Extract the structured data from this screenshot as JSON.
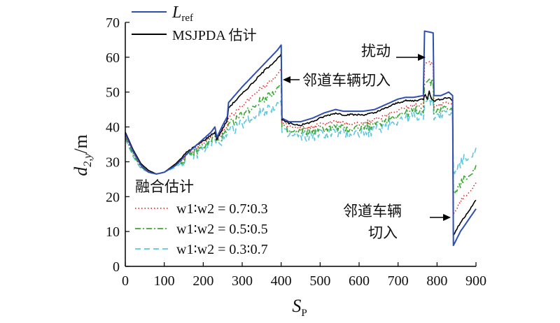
{
  "chart_data": {
    "type": "line",
    "xlabel": "S",
    "xlabel_sub": "P",
    "ylabel": "d",
    "ylabel_sub": "2,y",
    "ylabel_unit": "/m",
    "xlim": [
      0,
      900
    ],
    "ylim": [
      0,
      70
    ],
    "xticks": [
      0,
      100,
      200,
      300,
      400,
      500,
      600,
      700,
      800,
      900
    ],
    "yticks": [
      0,
      10,
      20,
      30,
      40,
      50,
      60,
      70
    ],
    "grid": false,
    "legend_top": {
      "placement": "top-left",
      "entries": [
        {
          "series": "ref",
          "label_main": "L",
          "label_sub": "ref"
        },
        {
          "series": "msjpda",
          "label": "MSJPDA 估计"
        }
      ]
    },
    "legend_bottom": {
      "placement": "bottom-left",
      "title": "融合估计",
      "entries": [
        {
          "series": "fuse1",
          "label": "w1∶w2 = 0.7∶0.3"
        },
        {
          "series": "fuse2",
          "label": "w1∶w2 = 0.5∶0.5"
        },
        {
          "series": "fuse3",
          "label": "w1∶w2 = 0.3∶0.7"
        }
      ]
    },
    "annotations": [
      {
        "text": "扰动",
        "x": 775,
        "y": 60
      },
      {
        "text": "邻道车辆切入",
        "x": 405,
        "y": 54
      },
      {
        "text": "邻道车辆",
        "x": 845,
        "y": 14
      },
      {
        "text": "切入",
        "x": 845,
        "y": 14
      }
    ],
    "series": [
      {
        "id": "ref",
        "color": "#2f4fb0",
        "dash": "solid",
        "points": [
          [
            0,
            38
          ],
          [
            20,
            33
          ],
          [
            40,
            29
          ],
          [
            60,
            27
          ],
          [
            80,
            26.5
          ],
          [
            100,
            27
          ],
          [
            130,
            29
          ],
          [
            160,
            32.5
          ],
          [
            200,
            36.5
          ],
          [
            220,
            38.5
          ],
          [
            230,
            40
          ],
          [
            235,
            37
          ],
          [
            250,
            40.5
          ],
          [
            262,
            43
          ],
          [
            265,
            47
          ],
          [
            300,
            51.5
          ],
          [
            330,
            55
          ],
          [
            360,
            58.5
          ],
          [
            390,
            62
          ],
          [
            400,
            63.5
          ],
          [
            402,
            42.5
          ],
          [
            420,
            41.5
          ],
          [
            450,
            41.5
          ],
          [
            480,
            42.5
          ],
          [
            510,
            44
          ],
          [
            540,
            45
          ],
          [
            560,
            44.5
          ],
          [
            580,
            44.5
          ],
          [
            610,
            44.5
          ],
          [
            640,
            45
          ],
          [
            660,
            46
          ],
          [
            680,
            47
          ],
          [
            700,
            48
          ],
          [
            720,
            48.5
          ],
          [
            740,
            48.5
          ],
          [
            765,
            49
          ],
          [
            768,
            67.5
          ],
          [
            790,
            67
          ],
          [
            792,
            49
          ],
          [
            810,
            49
          ],
          [
            830,
            50
          ],
          [
            840,
            49
          ],
          [
            842,
            6
          ],
          [
            860,
            10
          ],
          [
            900,
            16.5
          ]
        ]
      },
      {
        "id": "msjpda",
        "color": "#000000",
        "dash": "solid",
        "points": [
          [
            0,
            38.5
          ],
          [
            20,
            33.5
          ],
          [
            40,
            29.5
          ],
          [
            60,
            27.5
          ],
          [
            80,
            26.5
          ],
          [
            100,
            27
          ],
          [
            130,
            29.5
          ],
          [
            160,
            33
          ],
          [
            200,
            36
          ],
          [
            230,
            38.5
          ],
          [
            235,
            36.5
          ],
          [
            250,
            39.5
          ],
          [
            262,
            42
          ],
          [
            265,
            45.5
          ],
          [
            300,
            49.5
          ],
          [
            330,
            53
          ],
          [
            360,
            56.5
          ],
          [
            390,
            59.5
          ],
          [
            400,
            61
          ],
          [
            402,
            42
          ],
          [
            420,
            41
          ],
          [
            450,
            40.5
          ],
          [
            480,
            41.5
          ],
          [
            510,
            43
          ],
          [
            540,
            44
          ],
          [
            560,
            43.5
          ],
          [
            580,
            43.5
          ],
          [
            610,
            43.5
          ],
          [
            640,
            44
          ],
          [
            660,
            45
          ],
          [
            680,
            46
          ],
          [
            700,
            47
          ],
          [
            720,
            47.5
          ],
          [
            740,
            47.5
          ],
          [
            765,
            48
          ],
          [
            770,
            49.5
          ],
          [
            775,
            48
          ],
          [
            780,
            50.5
          ],
          [
            785,
            48
          ],
          [
            792,
            47.5
          ],
          [
            810,
            48
          ],
          [
            830,
            48.5
          ],
          [
            840,
            47.5
          ],
          [
            842,
            9
          ],
          [
            860,
            12.5
          ],
          [
            900,
            19
          ]
        ]
      },
      {
        "id": "fuse1",
        "color": "#e03030",
        "dash": "dotted",
        "points": [
          [
            0,
            37.5
          ],
          [
            20,
            32.5
          ],
          [
            40,
            28.5
          ],
          [
            60,
            27
          ],
          [
            80,
            26.5
          ],
          [
            100,
            27
          ],
          [
            130,
            29.5
          ],
          [
            160,
            32
          ],
          [
            200,
            35.5
          ],
          [
            230,
            38
          ],
          [
            235,
            36
          ],
          [
            250,
            38.5
          ],
          [
            262,
            40
          ],
          [
            265,
            42.5
          ],
          [
            300,
            46
          ],
          [
            330,
            49.5
          ],
          [
            360,
            52
          ],
          [
            390,
            55
          ],
          [
            400,
            56.5
          ],
          [
            402,
            41
          ],
          [
            420,
            40
          ],
          [
            450,
            39.5
          ],
          [
            480,
            40
          ],
          [
            510,
            41
          ],
          [
            540,
            41.5
          ],
          [
            560,
            41
          ],
          [
            580,
            41
          ],
          [
            610,
            41
          ],
          [
            640,
            42
          ],
          [
            660,
            43
          ],
          [
            680,
            44
          ],
          [
            700,
            45
          ],
          [
            720,
            45.5
          ],
          [
            740,
            46
          ],
          [
            765,
            46.5
          ],
          [
            768,
            58.5
          ],
          [
            790,
            58
          ],
          [
            792,
            46
          ],
          [
            810,
            46.5
          ],
          [
            830,
            47
          ],
          [
            840,
            46
          ],
          [
            842,
            15
          ],
          [
            860,
            18.5
          ],
          [
            900,
            24
          ]
        ]
      },
      {
        "id": "fuse2",
        "color": "#3aa832",
        "dash": "dashdot",
        "points": [
          [
            0,
            37
          ],
          [
            20,
            32
          ],
          [
            40,
            28.5
          ],
          [
            60,
            27
          ],
          [
            80,
            26.5
          ],
          [
            100,
            27
          ],
          [
            130,
            29
          ],
          [
            160,
            31.5
          ],
          [
            200,
            34.5
          ],
          [
            230,
            37
          ],
          [
            235,
            35.5
          ],
          [
            250,
            37.5
          ],
          [
            262,
            38.5
          ],
          [
            265,
            40.5
          ],
          [
            300,
            43.5
          ],
          [
            330,
            46
          ],
          [
            360,
            48.5
          ],
          [
            390,
            51
          ],
          [
            400,
            52
          ],
          [
            402,
            40
          ],
          [
            420,
            38.5
          ],
          [
            450,
            38.5
          ],
          [
            480,
            39
          ],
          [
            510,
            39.5
          ],
          [
            540,
            40
          ],
          [
            560,
            39.5
          ],
          [
            580,
            39.5
          ],
          [
            610,
            40
          ],
          [
            640,
            40.5
          ],
          [
            660,
            41.5
          ],
          [
            680,
            42.5
          ],
          [
            700,
            43.5
          ],
          [
            720,
            44
          ],
          [
            740,
            44.5
          ],
          [
            765,
            45
          ],
          [
            768,
            53
          ],
          [
            790,
            52.5
          ],
          [
            792,
            44.5
          ],
          [
            810,
            45
          ],
          [
            830,
            45.5
          ],
          [
            840,
            44.5
          ],
          [
            842,
            21
          ],
          [
            860,
            23.5
          ],
          [
            900,
            29
          ]
        ]
      },
      {
        "id": "fuse3",
        "color": "#5fc6dd",
        "dash": "dashed",
        "points": [
          [
            0,
            36.5
          ],
          [
            20,
            31.5
          ],
          [
            40,
            28
          ],
          [
            60,
            27
          ],
          [
            80,
            26.5
          ],
          [
            100,
            27
          ],
          [
            130,
            28.5
          ],
          [
            160,
            31
          ],
          [
            200,
            33.5
          ],
          [
            230,
            36
          ],
          [
            235,
            35
          ],
          [
            250,
            36.5
          ],
          [
            262,
            37
          ],
          [
            265,
            38.5
          ],
          [
            300,
            41
          ],
          [
            330,
            43
          ],
          [
            360,
            45
          ],
          [
            390,
            46.5
          ],
          [
            400,
            47
          ],
          [
            402,
            38.5
          ],
          [
            420,
            37.5
          ],
          [
            450,
            37
          ],
          [
            480,
            37.5
          ],
          [
            510,
            38
          ],
          [
            540,
            38.5
          ],
          [
            560,
            38
          ],
          [
            580,
            38
          ],
          [
            610,
            38.5
          ],
          [
            640,
            39
          ],
          [
            660,
            40
          ],
          [
            680,
            41
          ],
          [
            700,
            42
          ],
          [
            720,
            42.5
          ],
          [
            740,
            43
          ],
          [
            765,
            43.5
          ],
          [
            768,
            47.5
          ],
          [
            790,
            47
          ],
          [
            792,
            43
          ],
          [
            810,
            43.5
          ],
          [
            830,
            44
          ],
          [
            840,
            43
          ],
          [
            842,
            27
          ],
          [
            860,
            29.5
          ],
          [
            900,
            34
          ]
        ]
      }
    ]
  }
}
